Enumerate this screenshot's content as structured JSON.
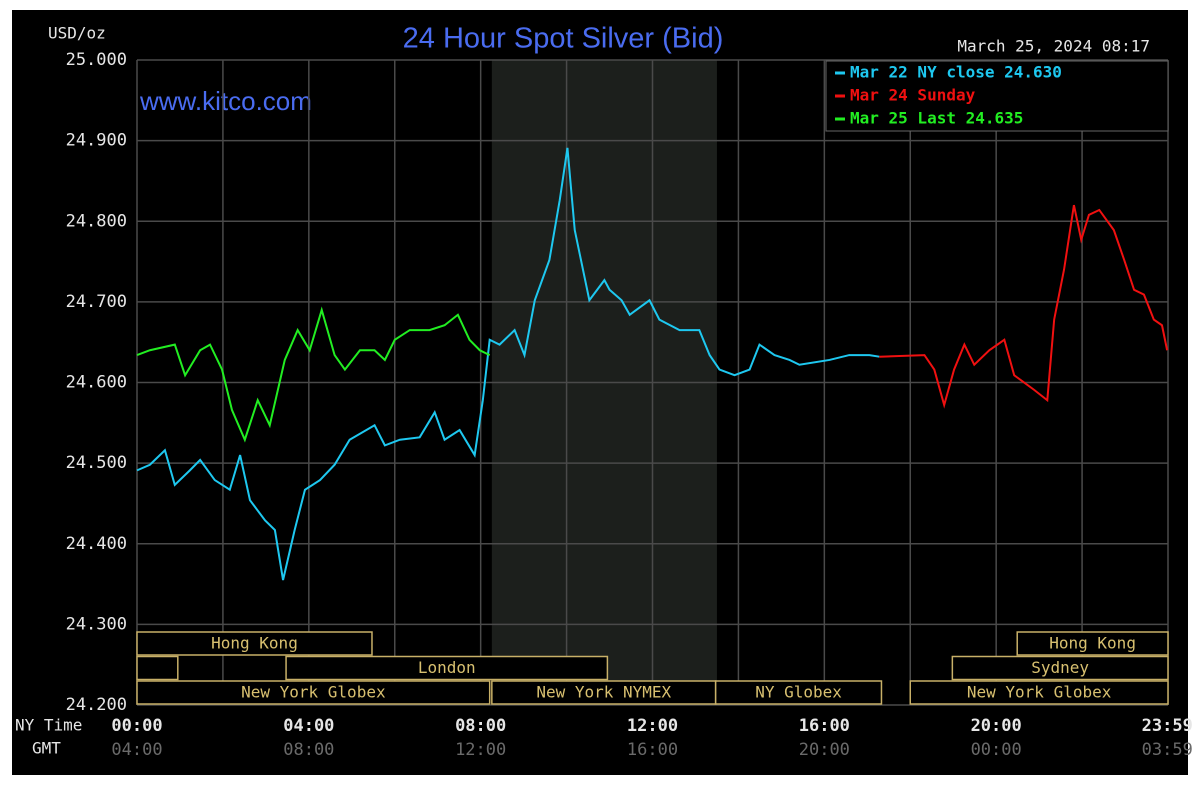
{
  "chart_data": {
    "type": "line",
    "title": "24 Hour Spot Silver (Bid)",
    "y_axis_label": "USD/oz",
    "timestamp": "March 25, 2024 08:17",
    "watermark": "www.kitco.com",
    "x_axis_label": "NY Time",
    "x2_axis_label": "GMT",
    "xlim": [
      0,
      24
    ],
    "ylim": [
      24.2,
      25.0
    ],
    "yticks": [
      {
        "value": 24.2,
        "label": "24.200"
      },
      {
        "value": 24.3,
        "label": "24.300"
      },
      {
        "value": 24.4,
        "label": "24.400"
      },
      {
        "value": 24.5,
        "label": "24.500"
      },
      {
        "value": 24.6,
        "label": "24.600"
      },
      {
        "value": 24.7,
        "label": "24.700"
      },
      {
        "value": 24.8,
        "label": "24.800"
      },
      {
        "value": 24.9,
        "label": "24.900"
      },
      {
        "value": 25.0,
        "label": "25.000"
      }
    ],
    "xticks": [
      {
        "value": 0,
        "label": "00:00"
      },
      {
        "value": 4,
        "label": "04:00"
      },
      {
        "value": 8,
        "label": "08:00"
      },
      {
        "value": 12,
        "label": "12:00"
      },
      {
        "value": 16,
        "label": "16:00"
      },
      {
        "value": 20,
        "label": "20:00"
      },
      {
        "value": 23.983,
        "label": "23:59"
      }
    ],
    "x2ticks": [
      "04:00",
      "08:00",
      "12:00",
      "16:00",
      "20:00",
      "00:00",
      "03:59"
    ],
    "xgrid": [
      0,
      2,
      4,
      6,
      8,
      10,
      12,
      14,
      16,
      18,
      20,
      22,
      24
    ],
    "grid": true,
    "nymex_shade": [
      8.26,
      13.5
    ],
    "legend": "upper right",
    "series": [
      {
        "name": "Mar 22 NY close 24.630",
        "color": "#1ec8f0",
        "x": [
          0,
          0.3,
          0.65,
          0.88,
          1.23,
          1.47,
          1.81,
          2.16,
          2.4,
          2.63,
          2.98,
          3.21,
          3.4,
          3.67,
          3.91,
          4.26,
          4.6,
          4.95,
          5.53,
          5.77,
          6.12,
          6.58,
          6.93,
          7.16,
          7.51,
          7.86,
          8.05,
          8.21,
          8.44,
          8.79,
          9.02,
          9.26,
          9.6,
          9.84,
          10.02,
          10.19,
          10.53,
          10.88,
          11.0,
          11.28,
          11.47,
          11.93,
          12.16,
          12.63,
          13.09,
          13.33,
          13.56,
          13.91,
          14.26,
          14.49,
          14.84,
          15.19,
          15.42,
          16.12,
          16.58,
          17.05,
          17.28
        ],
        "values": [
          24.491,
          24.498,
          24.516,
          24.473,
          24.491,
          24.504,
          24.479,
          24.467,
          24.51,
          24.454,
          24.429,
          24.417,
          24.355,
          24.417,
          24.467,
          24.479,
          24.498,
          24.529,
          24.547,
          24.522,
          24.529,
          24.532,
          24.563,
          24.529,
          24.541,
          24.51,
          24.578,
          24.653,
          24.647,
          24.665,
          24.634,
          24.702,
          24.752,
          24.826,
          24.891,
          24.789,
          24.702,
          24.727,
          24.715,
          24.702,
          24.684,
          24.702,
          24.678,
          24.665,
          24.665,
          24.634,
          24.616,
          24.609,
          24.616,
          24.647,
          24.634,
          24.628,
          24.622,
          24.628,
          24.634,
          24.634,
          24.632
        ]
      },
      {
        "name": "Mar 24 Sunday",
        "color": "#f01010",
        "x": [
          17.28,
          18.33,
          18.56,
          18.79,
          19.02,
          19.26,
          19.49,
          19.84,
          20.19,
          20.42,
          20.88,
          21.19,
          21.35,
          21.58,
          21.81,
          21.98,
          22.16,
          22.4,
          22.74,
          22.98,
          23.21,
          23.44,
          23.67,
          23.86,
          23.98
        ],
        "values": [
          24.632,
          24.634,
          24.616,
          24.572,
          24.616,
          24.647,
          24.622,
          24.64,
          24.653,
          24.609,
          24.591,
          24.578,
          24.678,
          24.74,
          24.82,
          24.777,
          24.808,
          24.814,
          24.789,
          24.752,
          24.715,
          24.709,
          24.678,
          24.671,
          24.64
        ]
      },
      {
        "name": "Mar 25 Last 24.635",
        "color": "#22ee22",
        "x": [
          0,
          0.3,
          0.88,
          1.12,
          1.47,
          1.7,
          1.98,
          2.21,
          2.51,
          2.81,
          3.09,
          3.44,
          3.74,
          4.02,
          4.3,
          4.6,
          4.84,
          5.19,
          5.53,
          5.77,
          6.0,
          6.35,
          6.81,
          7.16,
          7.47,
          7.74,
          7.98,
          8.21
        ],
        "values": [
          24.634,
          24.64,
          24.647,
          24.609,
          24.64,
          24.647,
          24.616,
          24.566,
          24.529,
          24.578,
          24.547,
          24.628,
          24.665,
          24.64,
          24.69,
          24.634,
          24.616,
          24.64,
          24.64,
          24.628,
          24.653,
          24.665,
          24.665,
          24.671,
          24.684,
          24.653,
          24.64,
          24.634
        ]
      }
    ],
    "session_rows": [
      [
        {
          "label": "Hong Kong",
          "start": 0,
          "end": 5.47
        },
        {
          "label": "Hong Kong",
          "start": 20.49,
          "end": 24
        }
      ],
      [
        {
          "label": null,
          "start": 0,
          "end": 0.95
        },
        {
          "label": "London",
          "start": 3.47,
          "end": 10.95
        },
        {
          "label": "Sydney",
          "start": 18.98,
          "end": 24
        }
      ],
      [
        {
          "label": "New York Globex",
          "start": 0,
          "end": 8.21
        },
        {
          "label": "New York NYMEX",
          "start": 8.26,
          "end": 13.47
        },
        {
          "label": "NY Globex",
          "start": 13.47,
          "end": 17.33
        },
        {
          "label": "New York Globex",
          "start": 18,
          "end": 24
        }
      ]
    ]
  }
}
